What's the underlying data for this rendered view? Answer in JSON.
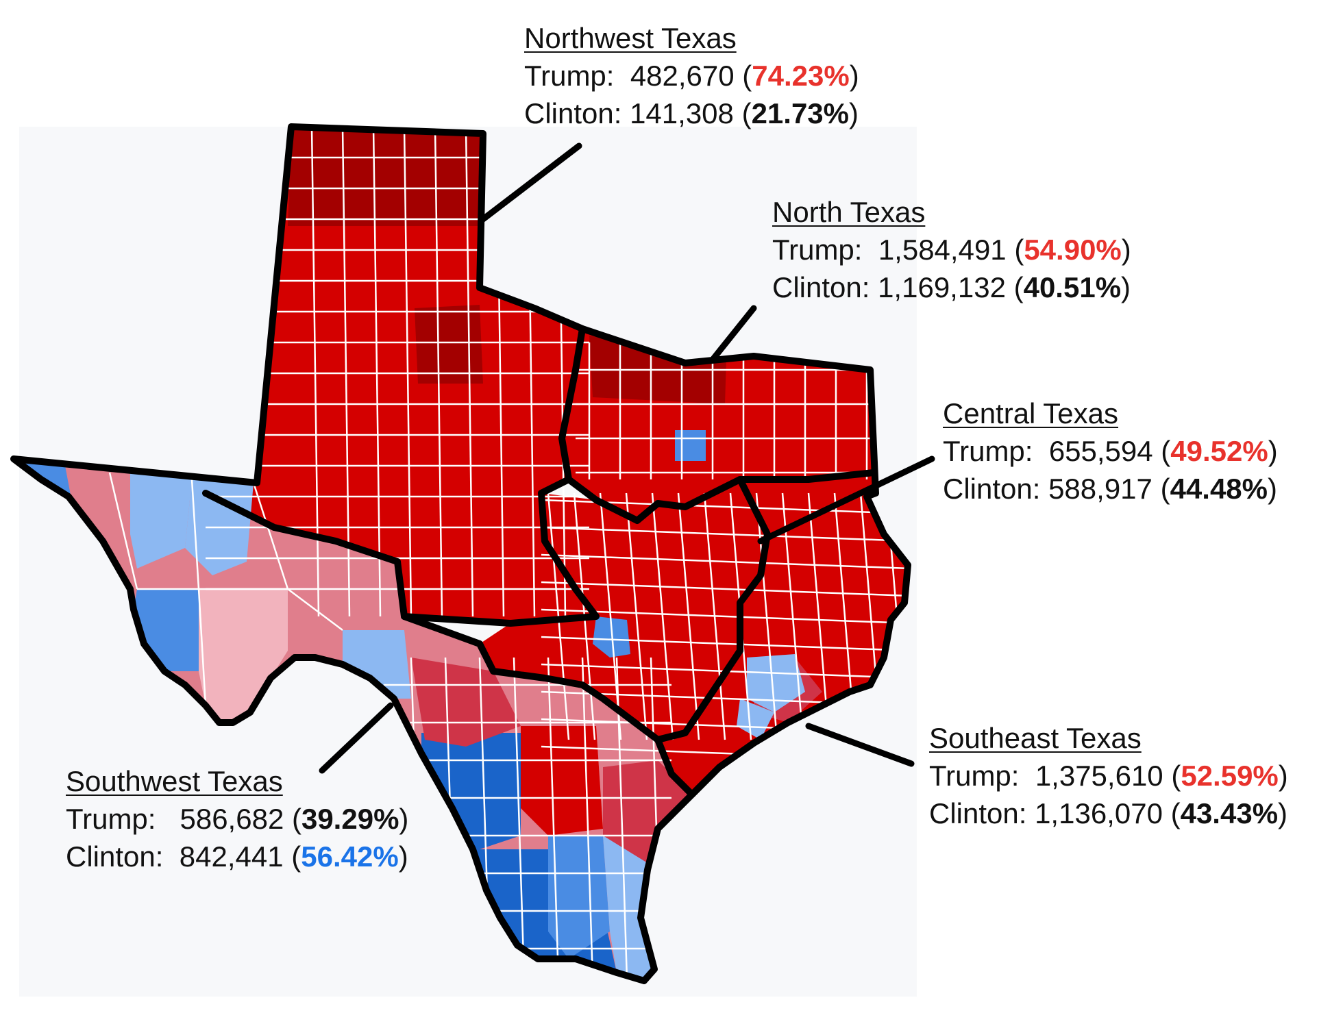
{
  "colors": {
    "rep_safe": "#a30000",
    "rep_strong": "#d40000",
    "rep_lean": "#cf3448",
    "rep_light": "#e07e8c",
    "rep_faint": "#f2b3bd",
    "dem_light": "#8cb8f2",
    "dem_mid": "#4a8ce3",
    "dem_strong": "#1a64c9",
    "trump_winner_text": "#e8322c",
    "clinton_winner_text": "#1a73e8",
    "background": "#f7f8fa"
  },
  "regions": [
    {
      "id": "northwest",
      "name": "Northwest Texas",
      "trump_label": "Trump:",
      "trump_votes": "482,670",
      "trump_pct": "74.23%",
      "clinton_label": "Clinton:",
      "clinton_votes": "141,308",
      "clinton_pct": "21.73%",
      "winner": "Trump"
    },
    {
      "id": "north",
      "name": "North Texas",
      "trump_label": "Trump:",
      "trump_votes": "1,584,491",
      "trump_pct": "54.90%",
      "clinton_label": "Clinton:",
      "clinton_votes": "1,169,132",
      "clinton_pct": "40.51%",
      "winner": "Trump"
    },
    {
      "id": "central",
      "name": "Central Texas",
      "trump_label": "Trump:",
      "trump_votes": "655,594",
      "trump_pct": "49.52%",
      "clinton_label": "Clinton:",
      "clinton_votes": "588,917",
      "clinton_pct": "44.48%",
      "winner": "Trump"
    },
    {
      "id": "southeast",
      "name": "Southeast Texas",
      "trump_label": "Trump:",
      "trump_votes": "1,375,610",
      "trump_pct": "52.59%",
      "clinton_label": "Clinton:",
      "clinton_votes": "1,136,070",
      "clinton_pct": "43.43%",
      "winner": "Trump"
    },
    {
      "id": "southwest",
      "name": "Southwest Texas",
      "trump_label": "Trump:",
      "trump_votes": "586,682",
      "trump_pct": "39.29%",
      "clinton_label": "Clinton:",
      "clinton_votes": "842,441",
      "clinton_pct": "56.42%",
      "winner": "Clinton"
    }
  ]
}
